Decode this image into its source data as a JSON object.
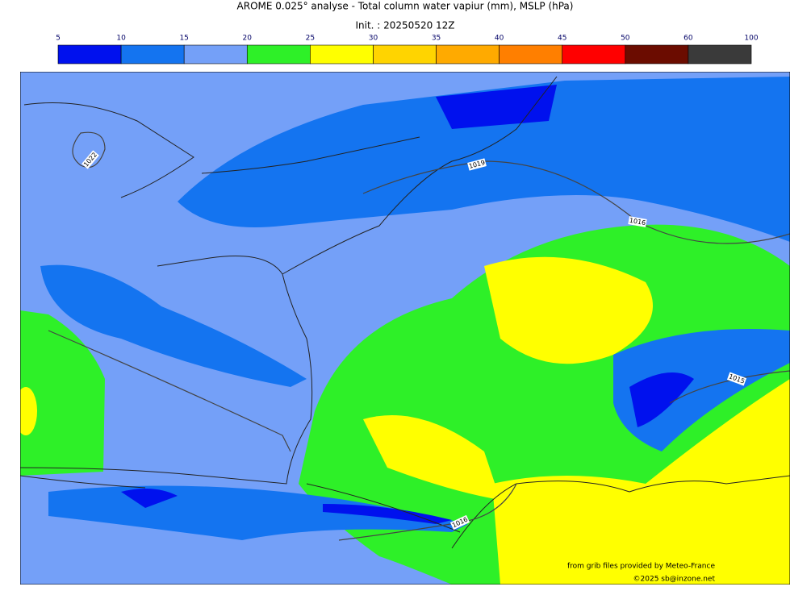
{
  "header": {
    "title": "AROME 0.025° analyse - Total column water vapiur (mm), MSLP (hPa)",
    "subtitle": "Init. : 20250520 12Z"
  },
  "colorbar": {
    "ticks": [
      5,
      10,
      15,
      20,
      25,
      30,
      35,
      40,
      45,
      50,
      60,
      100
    ],
    "colors": [
      "#0011ee",
      "#1474f0",
      "#74a0f8",
      "#2ef028",
      "#ffff00",
      "#ffd400",
      "#ffaa00",
      "#ff7f00",
      "#ff0000",
      "#6b0c00",
      "#3a3a3a"
    ]
  },
  "isobars": [
    {
      "label": "1022"
    },
    {
      "label": "1019"
    },
    {
      "label": "1016"
    },
    {
      "label": "1015"
    },
    {
      "label": "1016"
    }
  ],
  "credits": {
    "source": "from grib files provided by Meteo-France",
    "copyright": "©2025 sb@inzone.net"
  }
}
